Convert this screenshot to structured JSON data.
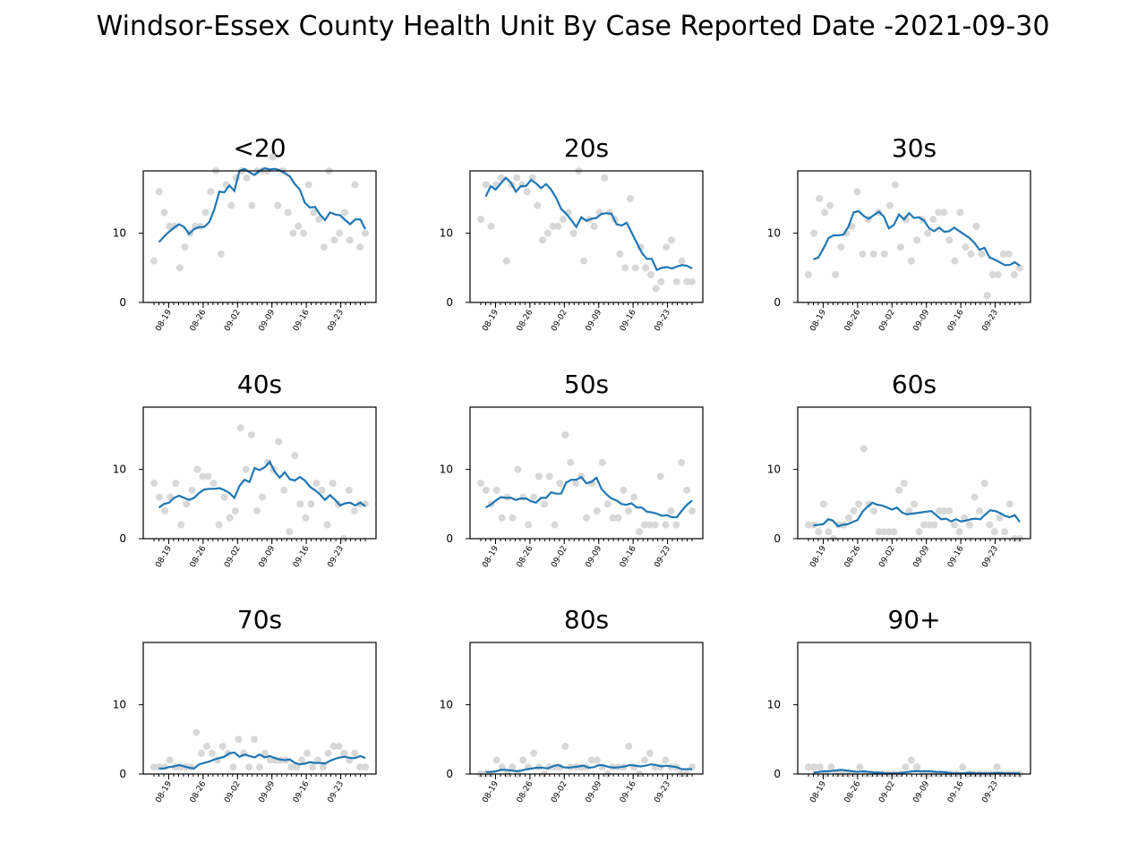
{
  "figure": {
    "title": "Windsor-Essex County Health Unit By Case Reported Date -2021-09-30"
  },
  "chart_data": [
    {
      "type": "scatter",
      "title": "<20",
      "ylim": [
        0,
        19
      ],
      "x_tick_labels": [
        "08-19",
        "08-26",
        "09-02",
        "09-09",
        "09-16",
        "09-23"
      ],
      "x_start": "2021-08-16",
      "x_end": "2021-09-28",
      "y_ticks": [
        0,
        10
      ],
      "points": [
        6,
        16,
        13,
        11,
        11,
        5,
        8,
        10,
        11,
        11,
        13,
        16,
        19,
        7,
        17,
        14,
        18,
        19,
        18,
        14,
        19,
        19,
        19,
        21,
        14,
        19,
        13,
        10,
        11,
        10,
        17,
        13,
        12,
        8,
        19,
        9,
        10,
        13,
        9,
        17,
        8,
        10
      ],
      "trend": [
        8.7,
        9.5,
        10.2,
        10.8,
        11.3,
        10.9,
        9.9,
        10.6,
        10.9,
        10.9,
        11.6,
        13.4,
        16,
        15.9,
        16.9,
        16.1,
        19,
        19.3,
        18.8,
        18.4,
        19,
        19.4,
        19.2,
        19.3,
        19.1,
        18.7,
        18.2,
        17.1,
        16.3,
        14.4,
        13.7,
        13.8,
        12.7,
        11.9,
        13,
        12.7,
        12.6,
        11.9,
        11.3,
        12,
        12,
        10.6
      ]
    },
    {
      "type": "scatter",
      "title": "20s",
      "ylim": [
        0,
        19
      ],
      "x_tick_labels": [
        "08-19",
        "08-26",
        "09-02",
        "09-09",
        "09-16",
        "09-23"
      ],
      "x_start": "2021-08-16",
      "x_end": "2021-09-28",
      "y_ticks": [
        0,
        10
      ],
      "points": [
        12,
        17,
        11,
        17,
        18,
        6,
        17,
        18,
        17,
        16,
        18,
        14,
        9,
        10,
        11,
        11,
        12,
        13,
        10,
        19,
        6,
        12,
        11,
        13,
        18,
        13,
        12,
        7,
        5,
        15,
        5,
        8,
        5,
        4,
        2,
        3,
        8,
        9,
        3,
        6,
        3,
        3
      ],
      "trend": [
        15.3,
        16.8,
        16.3,
        17.2,
        18,
        17.3,
        16,
        16.8,
        16.8,
        17.7,
        17.2,
        16.5,
        17.1,
        16.3,
        15.1,
        13.5,
        12.8,
        11.9,
        10.9,
        12.3,
        11.8,
        12.1,
        12.2,
        12.8,
        12.9,
        12.8,
        11.3,
        11.1,
        11.5,
        10.1,
        8.6,
        7.2,
        6.3,
        6.3,
        4.7,
        5,
        5.1,
        4.9,
        5.2,
        5.4,
        5.3,
        4.9
      ]
    },
    {
      "type": "scatter",
      "title": "30s",
      "ylim": [
        0,
        19
      ],
      "x_tick_labels": [
        "08-19",
        "08-26",
        "09-02",
        "09-09",
        "09-16",
        "09-23"
      ],
      "x_start": "2021-08-16",
      "x_end": "2021-09-28",
      "y_ticks": [
        0,
        10
      ],
      "points": [
        4,
        10,
        15,
        13,
        14,
        4,
        8,
        10,
        11,
        16,
        7,
        12,
        7,
        13,
        7,
        14,
        17,
        8,
        12,
        6,
        9,
        12,
        10,
        12,
        13,
        13,
        9,
        6,
        13,
        8,
        7,
        11,
        7,
        1,
        4,
        4,
        7,
        7,
        4,
        5
      ],
      "trend": [
        6.2,
        6.5,
        7.8,
        9.3,
        9.7,
        9.7,
        9.8,
        11,
        13,
        13.2,
        12.5,
        12.1,
        12.6,
        13.1,
        12.4,
        10.7,
        11.2,
        12.7,
        12,
        12.9,
        12.2,
        12.3,
        11.8,
        10.7,
        10.3,
        10.8,
        10.2,
        10.3,
        10.8,
        10.3,
        9.8,
        9.3,
        8.6,
        7.6,
        7.9,
        6.5,
        6.2,
        5.8,
        5.4,
        5.4,
        5.8,
        5.3
      ]
    },
    {
      "type": "scatter",
      "title": "40s",
      "ylim": [
        0,
        19
      ],
      "x_tick_labels": [
        "08-19",
        "08-26",
        "09-02",
        "09-09",
        "09-16",
        "09-23"
      ],
      "x_start": "2021-08-16",
      "x_end": "2021-09-28",
      "y_ticks": [
        0,
        10
      ],
      "points": [
        8,
        6,
        4,
        6,
        8,
        2,
        5,
        7,
        10,
        9,
        9,
        8,
        2,
        6,
        3,
        4,
        16,
        10,
        15,
        4,
        6,
        11,
        10,
        14,
        7,
        1,
        12,
        5,
        3,
        5,
        8,
        7,
        2,
        8,
        5,
        0,
        7,
        4,
        5,
        5
      ],
      "trend": [
        4.5,
        5,
        5.2,
        5.9,
        6.2,
        5.9,
        5.6,
        5.9,
        6.6,
        7.1,
        7.2,
        7.2,
        7.3,
        7,
        6.6,
        5.9,
        7.6,
        8.5,
        8.2,
        10.2,
        9.9,
        10.3,
        11.1,
        9.7,
        8.8,
        9.6,
        8.6,
        8.4,
        8.9,
        8.4,
        7.5,
        7,
        6.4,
        5.6,
        6.3,
        5.6,
        4.8,
        5.1,
        5.2,
        4.8,
        5.2,
        4.7
      ]
    },
    {
      "type": "scatter",
      "title": "50s",
      "ylim": [
        0,
        19
      ],
      "x_tick_labels": [
        "08-19",
        "08-26",
        "09-02",
        "09-09",
        "09-16",
        "09-23"
      ],
      "x_start": "2021-08-16",
      "x_end": "2021-09-28",
      "y_ticks": [
        0,
        10
      ],
      "points": [
        8,
        7,
        5,
        7,
        3,
        6,
        3,
        10,
        6,
        2,
        6,
        9,
        5,
        9,
        2,
        8,
        15,
        11,
        8,
        9,
        3,
        8,
        4,
        11,
        5,
        3,
        3,
        7,
        4,
        6,
        1,
        2,
        2,
        2,
        9,
        2,
        4,
        2,
        11,
        7,
        4
      ],
      "trend": [
        4.5,
        4.9,
        5.5,
        6,
        5.9,
        5.9,
        5.6,
        5.8,
        5.8,
        5.4,
        5.2,
        5.9,
        5.9,
        6.7,
        6.5,
        6.5,
        8.1,
        8.5,
        8.5,
        8.9,
        8,
        8.2,
        8.8,
        7.2,
        6.4,
        5.8,
        5.5,
        5,
        4.9,
        5.1,
        4.5,
        4.5,
        3.9,
        3.8,
        3.6,
        3.3,
        3.4,
        3.1,
        3.1,
        4.1,
        4.9,
        5.5
      ]
    },
    {
      "type": "scatter",
      "title": "60s",
      "ylim": [
        0,
        19
      ],
      "x_tick_labels": [
        "08-19",
        "08-26",
        "09-02",
        "09-09",
        "09-16",
        "09-23"
      ],
      "x_start": "2021-08-16",
      "x_end": "2021-09-28",
      "y_ticks": [
        0,
        10
      ],
      "points": [
        2,
        2,
        1,
        5,
        1,
        0,
        2,
        2,
        3,
        4,
        5,
        13,
        5,
        4,
        1,
        1,
        1,
        1,
        7,
        8,
        4,
        5,
        1,
        2,
        2,
        2,
        4,
        4,
        4,
        2,
        1,
        3,
        2,
        6,
        4,
        8,
        2,
        1,
        3,
        1,
        5,
        0,
        0
      ],
      "trend": [
        1.9,
        2,
        2.1,
        2.8,
        2.6,
        1.8,
        2,
        2.1,
        2.4,
        2.7,
        3.9,
        4.6,
        5.2,
        4.9,
        4.8,
        4.5,
        4.2,
        4.5,
        3.8,
        3.5,
        3.6,
        3.7,
        3.8,
        3.9,
        4,
        3.4,
        2.8,
        2.9,
        2.5,
        2.8,
        2.5,
        2.6,
        2.8,
        2.9,
        2.8,
        3.5,
        4.1,
        4,
        3.7,
        3.3,
        3.1,
        3.4,
        2.4
      ]
    },
    {
      "type": "scatter",
      "title": "70s",
      "ylim": [
        0,
        19
      ],
      "x_tick_labels": [
        "08-19",
        "08-26",
        "09-02",
        "09-09",
        "09-16",
        "09-23"
      ],
      "x_start": "2021-08-16",
      "x_end": "2021-09-28",
      "y_ticks": [
        0,
        10
      ],
      "points": [
        1,
        1,
        1,
        2,
        1,
        1,
        1,
        1,
        6,
        3,
        4,
        3,
        2,
        4,
        3,
        1,
        5,
        3,
        1,
        5,
        1,
        3,
        2,
        2,
        2,
        2,
        1,
        1,
        2,
        3,
        1,
        2,
        1,
        3,
        4,
        4,
        3,
        2,
        3,
        1,
        1
      ],
      "trend": [
        0.8,
        0.8,
        1,
        1.1,
        1.3,
        1.1,
        0.9,
        0.8,
        1.4,
        1.6,
        1.8,
        2.1,
        2.3,
        2.5,
        3,
        3.1,
        2.5,
        2.8,
        2.6,
        2.4,
        2.8,
        2.4,
        2.6,
        2.3,
        2.1,
        2,
        2.1,
        1.6,
        1.4,
        1.5,
        1.7,
        1.6,
        1.6,
        1.5,
        1.9,
        2.2,
        2.4,
        2.5,
        2.3,
        2.3,
        2.6,
        2.3
      ]
    },
    {
      "type": "scatter",
      "title": "80s",
      "ylim": [
        0,
        19
      ],
      "x_tick_labels": [
        "08-19",
        "08-26",
        "09-02",
        "09-09",
        "09-16",
        "09-23"
      ],
      "x_start": "2021-08-16",
      "x_end": "2021-09-28",
      "y_ticks": [
        0,
        10
      ],
      "points": [
        0,
        0,
        0,
        2,
        1,
        0,
        1,
        0,
        2,
        1,
        3,
        1,
        0,
        1,
        1,
        1,
        4,
        1,
        1,
        1,
        1,
        2,
        2,
        1,
        0,
        1,
        1,
        1,
        4,
        1,
        0,
        2,
        3,
        1,
        1,
        2,
        1,
        1,
        0,
        0,
        1
      ],
      "trend": [
        0.3,
        0.3,
        0.4,
        0.6,
        0.6,
        0.5,
        0.4,
        0.5,
        0.7,
        0.8,
        0.9,
        0.9,
        0.8,
        1.1,
        1.3,
        1,
        0.9,
        1,
        1.1,
        1.2,
        0.9,
        1,
        1.3,
        1.2,
        1,
        0.9,
        1,
        1.1,
        1.3,
        1.2,
        1.1,
        1.2,
        1.4,
        1.3,
        1.1,
        1.2,
        1.1,
        1,
        0.7,
        0.7,
        0.7
      ]
    },
    {
      "type": "scatter",
      "title": "90+",
      "ylim": [
        0,
        19
      ],
      "x_tick_labels": [
        "08-19",
        "08-26",
        "09-02",
        "09-09",
        "09-16",
        "09-23"
      ],
      "x_start": "2021-08-16",
      "x_end": "2021-09-28",
      "y_ticks": [
        0,
        10
      ],
      "points": [
        1,
        1,
        1,
        0,
        1,
        0,
        0,
        0,
        0,
        1,
        0,
        0,
        0,
        0,
        0,
        0,
        0,
        1,
        2,
        1,
        0,
        0,
        0,
        0,
        0,
        0,
        0,
        1,
        0,
        0,
        0,
        0,
        0,
        1,
        0,
        0,
        0,
        0
      ],
      "trend": [
        0.2,
        0.3,
        0.4,
        0.4,
        0.5,
        0.6,
        0.5,
        0.4,
        0.3,
        0.4,
        0.3,
        0.2,
        0.2,
        0.1,
        0.1,
        0.1,
        0.2,
        0.3,
        0.4,
        0.4,
        0.4,
        0.4,
        0.3,
        0.3,
        0.2,
        0.1,
        0.1,
        0.1,
        0.2,
        0.1,
        0.1,
        0.1,
        0.1,
        0.2,
        0.1,
        0.1,
        0.1,
        0.1
      ]
    }
  ]
}
